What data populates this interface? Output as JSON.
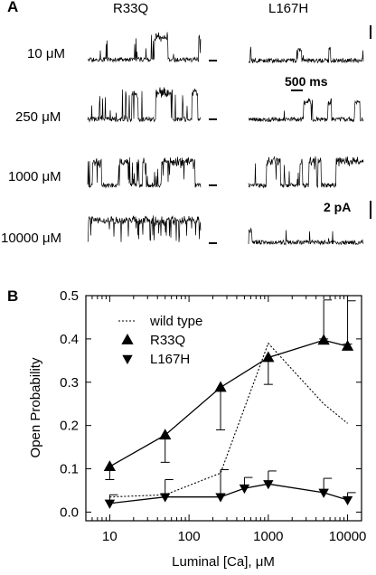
{
  "panel_a": {
    "letter": "A",
    "columns": [
      "R33Q",
      "L167H"
    ],
    "rows": [
      "10 μM",
      "250 μM",
      "1000 μM",
      "10000 μM"
    ],
    "scale_time": "500 ms",
    "scale_current": "2 pA"
  },
  "panel_b": {
    "letter": "B"
  },
  "chart_data": {
    "type": "line",
    "xlabel": "Luminal [Ca], μM",
    "ylabel": "Open Probability",
    "xscale": "log",
    "xlim": [
      5,
      15000
    ],
    "ylim": [
      -0.02,
      0.5
    ],
    "xticks": [
      10,
      100,
      1000,
      10000
    ],
    "xtick_labels": [
      "10",
      "100",
      "1000",
      "10000"
    ],
    "yticks": [
      0.0,
      0.1,
      0.2,
      0.3,
      0.4,
      0.5
    ],
    "ytick_labels": [
      "0.0",
      "0.1",
      "0.2",
      "0.3",
      "0.4",
      "0.5"
    ],
    "legend_position": "top-center",
    "series": [
      {
        "name": "wild type",
        "style": "dotted",
        "marker": "none",
        "x": [
          10,
          50,
          250,
          1000,
          5000,
          10000
        ],
        "y": [
          0.035,
          0.04,
          0.09,
          0.39,
          0.25,
          0.205
        ]
      },
      {
        "name": "R33Q",
        "style": "solid",
        "marker": "triangle-up",
        "x": [
          10,
          50,
          250,
          1000,
          5000,
          10000
        ],
        "y": [
          0.105,
          0.178,
          0.288,
          0.357,
          0.397,
          0.383
        ],
        "error_lower": [
          0.075,
          0.115,
          0.19,
          0.295,
          0.4,
          0.388
        ],
        "error_upper": [
          0.105,
          0.178,
          0.288,
          0.357,
          0.49,
          0.488
        ]
      },
      {
        "name": "L167H",
        "style": "solid",
        "marker": "triangle-down",
        "x": [
          10,
          50,
          250,
          500,
          1000,
          5000,
          10000
        ],
        "y": [
          0.02,
          0.035,
          0.035,
          0.055,
          0.065,
          0.045,
          0.028
        ],
        "error_upper": [
          0.04,
          0.075,
          0.098,
          0.08,
          0.095,
          0.078,
          0.045
        ]
      }
    ]
  }
}
